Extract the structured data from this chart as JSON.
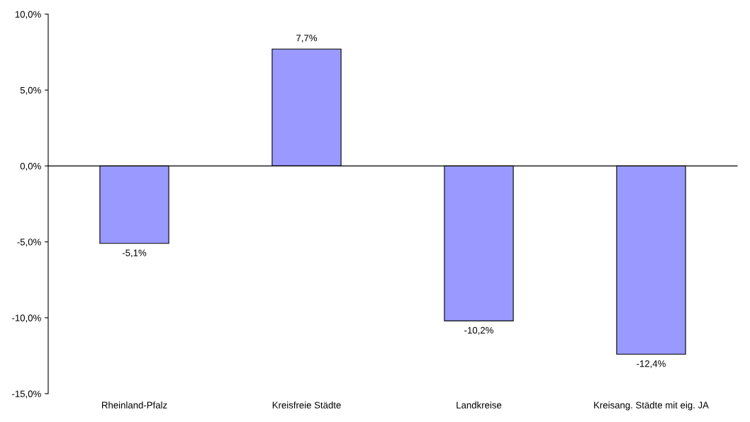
{
  "chart_data": {
    "type": "bar",
    "categories": [
      "Rheinland-Pfalz",
      "Kreisfreie Städte",
      "Landkreise",
      "Kreisang. Städte mit eig. JA"
    ],
    "values": [
      -5.1,
      7.7,
      -10.2,
      -12.4
    ],
    "color": "#9999ff",
    "value_labels": [
      "-5,1%",
      "7,7%",
      "-10,2%",
      "-12,4%"
    ],
    "ylim": [
      -15,
      10
    ],
    "yticks": [
      {
        "value": -15,
        "label": "-15,0%"
      },
      {
        "value": -10,
        "label": "-10,0%"
      },
      {
        "value": -5,
        "label": "-5,0%"
      },
      {
        "value": 0,
        "label": "0,0%"
      },
      {
        "value": 5,
        "label": "5,0%"
      },
      {
        "value": 10,
        "label": "10,0%"
      }
    ],
    "legend": false
  }
}
